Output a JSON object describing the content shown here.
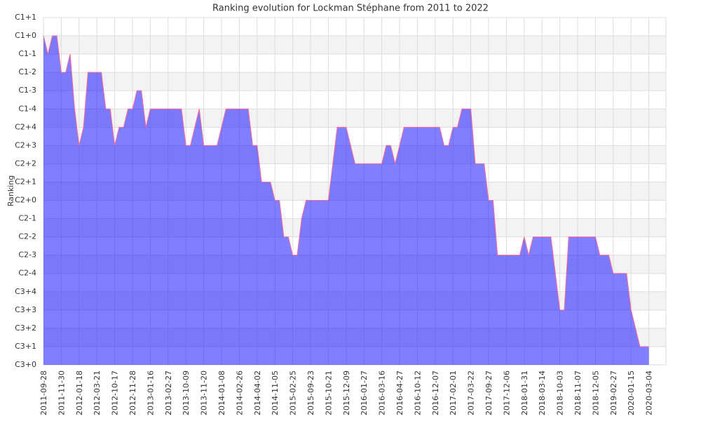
{
  "chart_data": {
    "type": "area",
    "title": "Ranking evolution for Lockman Stéphane from 2011 to 2022",
    "y_label": "Ranking",
    "categories": [
      "2011-09-28",
      null,
      null,
      null,
      "2011-11-30",
      null,
      null,
      null,
      "2012-01-18",
      null,
      null,
      null,
      "2012-03-21",
      null,
      null,
      null,
      "2012-10-17",
      null,
      null,
      null,
      "2012-11-28",
      null,
      null,
      null,
      "2013-01-16",
      null,
      null,
      null,
      "2013-02-27",
      null,
      null,
      null,
      "2013-10-09",
      null,
      null,
      null,
      "2013-11-20",
      null,
      null,
      null,
      "2014-01-08",
      null,
      null,
      null,
      "2014-02-26",
      null,
      null,
      null,
      "2014-04-02",
      null,
      null,
      null,
      "2014-11-05",
      null,
      null,
      null,
      "2015-02-25",
      null,
      null,
      null,
      "2015-09-23",
      null,
      null,
      null,
      "2015-10-21",
      null,
      null,
      null,
      "2015-12-09",
      null,
      null,
      null,
      "2016-01-27",
      null,
      null,
      null,
      "2016-03-16",
      null,
      null,
      null,
      "2016-04-27",
      null,
      null,
      null,
      "2016-10-12",
      null,
      null,
      null,
      "2016-12-07",
      null,
      null,
      null,
      "2017-02-01",
      null,
      null,
      null,
      "2017-03-22",
      null,
      null,
      null,
      "2017-09-27",
      null,
      null,
      null,
      "2017-12-06",
      null,
      null,
      null,
      "2018-01-31",
      null,
      null,
      null,
      "2018-03-14",
      null,
      null,
      null,
      "2018-10-03",
      null,
      null,
      null,
      "2018-11-07",
      null,
      null,
      null,
      "2018-12-05",
      null,
      null,
      null,
      "2019-02-27",
      null,
      null,
      null,
      "2020-01-15",
      null,
      null,
      null,
      "2020-03-04"
    ],
    "values": [
      18,
      17,
      18,
      18,
      16,
      16,
      17,
      14,
      12,
      13,
      16,
      16,
      16,
      16,
      14,
      14,
      12,
      13,
      13,
      14,
      14,
      15,
      15,
      13,
      14,
      14,
      14,
      14,
      14,
      14,
      14,
      14,
      12,
      12,
      13,
      14,
      12,
      12,
      12,
      12,
      13,
      14,
      14,
      14,
      14,
      14,
      14,
      12,
      12,
      10,
      10,
      10,
      9,
      9,
      7,
      7,
      6,
      6,
      8,
      9,
      9,
      9,
      9,
      9,
      9,
      11,
      13,
      13,
      13,
      12,
      11,
      11,
      11,
      11,
      11,
      11,
      11,
      12,
      12,
      11,
      12,
      13,
      13,
      13,
      13,
      13,
      13,
      13,
      13,
      13,
      12,
      12,
      13,
      13,
      14,
      14,
      14,
      11,
      11,
      11,
      9,
      9,
      6,
      6,
      6,
      6,
      6,
      6,
      7,
      6,
      7,
      7,
      7,
      7,
      7,
      5,
      3,
      3,
      7,
      7,
      7,
      7,
      7,
      7,
      7,
      6,
      6,
      6,
      5,
      5,
      5,
      5,
      3,
      2,
      1,
      1,
      1
    ],
    "ylim": [
      0,
      19
    ],
    "yticks": [
      {
        "value": 0,
        "label": "C3+0"
      },
      {
        "value": 1,
        "label": "C3+1"
      },
      {
        "value": 2,
        "label": "C3+2"
      },
      {
        "value": 3,
        "label": "C3+3"
      },
      {
        "value": 4,
        "label": "C3+4"
      },
      {
        "value": 5,
        "label": "C2-4"
      },
      {
        "value": 6,
        "label": "C2-3"
      },
      {
        "value": 7,
        "label": "C2-2"
      },
      {
        "value": 8,
        "label": "C2-1"
      },
      {
        "value": 9,
        "label": "C2+0"
      },
      {
        "value": 10,
        "label": "C2+1"
      },
      {
        "value": 11,
        "label": "C2+2"
      },
      {
        "value": 12,
        "label": "C2+3"
      },
      {
        "value": 13,
        "label": "C2+4"
      },
      {
        "value": 14,
        "label": "C1-4"
      },
      {
        "value": 15,
        "label": "C1-3"
      },
      {
        "value": 16,
        "label": "C1-2"
      },
      {
        "value": 17,
        "label": "C1-1"
      },
      {
        "value": 18,
        "label": "C1+0"
      },
      {
        "value": 19,
        "label": "C1+1"
      }
    ],
    "color": "#0000ff",
    "line_color": "#ff6699",
    "grid": true
  }
}
